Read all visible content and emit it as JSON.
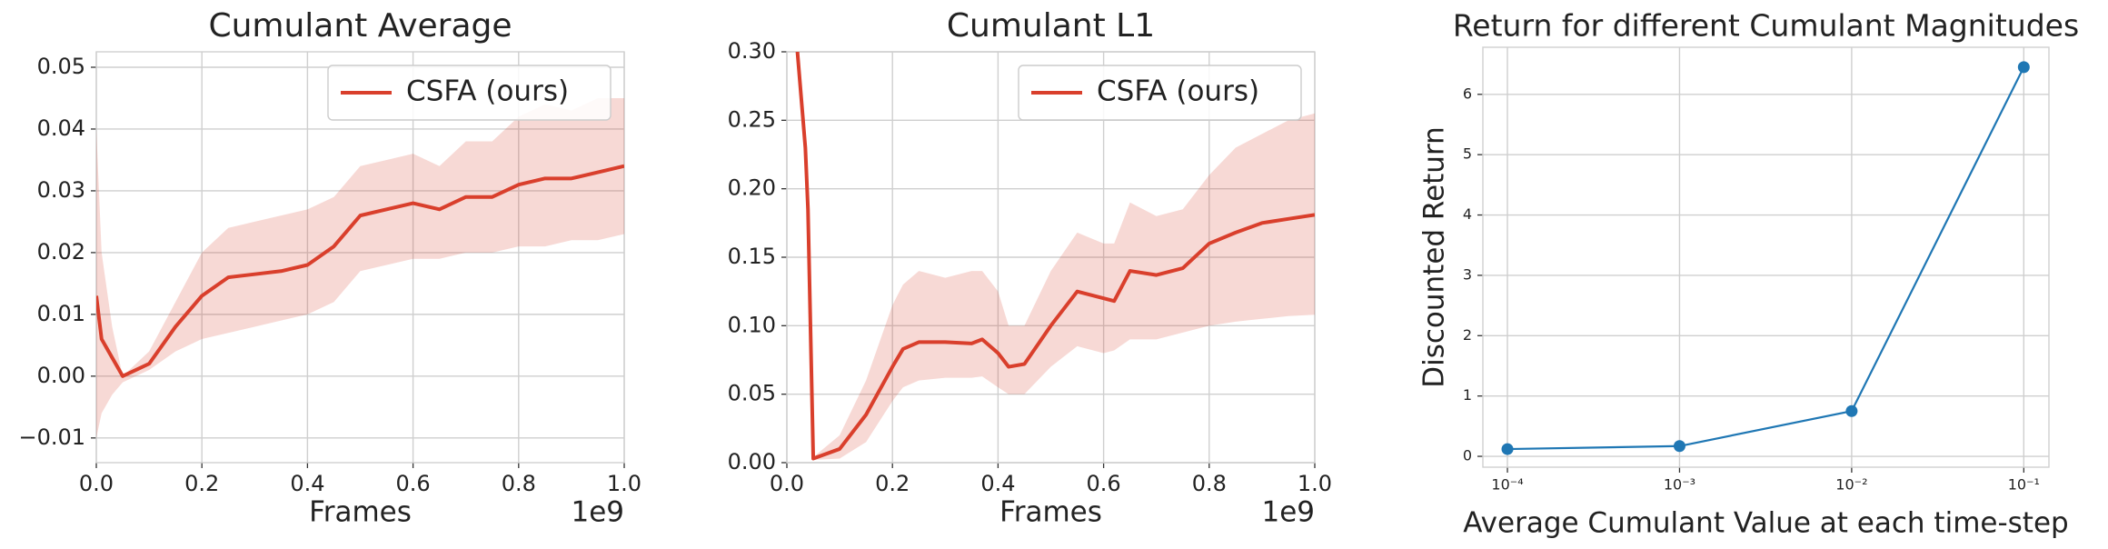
{
  "chart_data": [
    {
      "type": "line",
      "title": "Cumulant Average",
      "x_label": "Frames",
      "x_offset_text": "1e9",
      "x": [
        0,
        0.01,
        0.03,
        0.05,
        0.1,
        0.15,
        0.2,
        0.25,
        0.3,
        0.35,
        0.4,
        0.45,
        0.5,
        0.55,
        0.6,
        0.65,
        0.7,
        0.75,
        0.8,
        0.85,
        0.9,
        0.95,
        1.0
      ],
      "series": [
        {
          "name": "CSFA (ours)",
          "color": "#d93f2c",
          "values": [
            0.013,
            0.006,
            0.003,
            0.0,
            0.002,
            0.008,
            0.013,
            0.016,
            0.0165,
            0.017,
            0.018,
            0.021,
            0.026,
            0.027,
            0.028,
            0.027,
            0.029,
            0.029,
            0.031,
            0.032,
            0.032,
            0.033,
            0.034
          ],
          "lower": [
            -0.01,
            -0.006,
            -0.003,
            -0.001,
            0.001,
            0.004,
            0.006,
            0.007,
            0.008,
            0.009,
            0.01,
            0.012,
            0.017,
            0.018,
            0.019,
            0.019,
            0.02,
            0.02,
            0.021,
            0.021,
            0.022,
            0.022,
            0.023
          ],
          "upper": [
            0.04,
            0.02,
            0.008,
            0.0,
            0.004,
            0.012,
            0.02,
            0.024,
            0.025,
            0.026,
            0.027,
            0.029,
            0.034,
            0.035,
            0.036,
            0.034,
            0.038,
            0.038,
            0.042,
            0.044,
            0.043,
            0.045,
            0.045
          ]
        }
      ],
      "xlim": [
        0,
        1
      ],
      "xticks": [
        {
          "value": 0,
          "label": "0.0"
        },
        {
          "value": 0.2,
          "label": "0.2"
        },
        {
          "value": 0.4,
          "label": "0.4"
        },
        {
          "value": 0.6,
          "label": "0.6"
        },
        {
          "value": 0.8,
          "label": "0.8"
        },
        {
          "value": 1,
          "label": "1.0"
        }
      ],
      "ylim": [
        -0.014,
        0.0525
      ],
      "yticks": [
        {
          "value": -0.01,
          "label": "−0.01"
        },
        {
          "value": 0,
          "label": "0.00"
        },
        0.01,
        0.02,
        0.03,
        0.04,
        0.05
      ],
      "grid": true,
      "legend": "upper right"
    },
    {
      "type": "line",
      "title": "Cumulant L1",
      "x_label": "Frames",
      "x_offset_text": "1e9",
      "x": [
        0.02,
        0.035,
        0.04,
        0.05,
        0.1,
        0.15,
        0.2,
        0.22,
        0.25,
        0.3,
        0.35,
        0.37,
        0.4,
        0.42,
        0.45,
        0.5,
        0.55,
        0.6,
        0.62,
        0.65,
        0.7,
        0.75,
        0.8,
        0.85,
        0.9,
        0.95,
        1.0
      ],
      "series": [
        {
          "name": "CSFA (ours)",
          "color": "#d93f2c",
          "values": [
            0.3,
            0.23,
            0.185,
            0.003,
            0.01,
            0.035,
            0.07,
            0.083,
            0.088,
            0.088,
            0.087,
            0.09,
            0.08,
            0.07,
            0.072,
            0.1,
            0.125,
            0.12,
            0.118,
            0.14,
            0.137,
            0.142,
            0.16,
            0.168,
            0.175,
            0.178,
            0.181
          ],
          "lower": [
            null,
            null,
            null,
            0.002,
            0.003,
            0.015,
            0.045,
            0.055,
            0.06,
            0.062,
            0.062,
            0.063,
            0.055,
            0.05,
            0.05,
            0.07,
            0.085,
            0.08,
            0.082,
            0.09,
            0.09,
            0.095,
            0.1,
            0.103,
            0.105,
            0.107,
            0.108
          ],
          "upper": [
            null,
            null,
            null,
            0.004,
            0.02,
            0.06,
            0.115,
            0.13,
            0.14,
            0.135,
            0.14,
            0.14,
            0.125,
            0.1,
            0.1,
            0.14,
            0.168,
            0.16,
            0.16,
            0.19,
            0.18,
            0.185,
            0.21,
            0.23,
            0.24,
            0.25,
            0.255
          ]
        }
      ],
      "xlim": [
        0,
        1
      ],
      "xticks": [
        {
          "value": 0,
          "label": "0.0"
        },
        {
          "value": 0.2,
          "label": "0.2"
        },
        {
          "value": 0.4,
          "label": "0.4"
        },
        {
          "value": 0.6,
          "label": "0.6"
        },
        {
          "value": 0.8,
          "label": "0.8"
        },
        {
          "value": 1,
          "label": "1.0"
        }
      ],
      "ylim": [
        0,
        0.3
      ],
      "yticks": [
        {
          "value": 0,
          "label": "0.00"
        },
        0.05,
        {
          "value": 0.1,
          "label": "0.10"
        },
        0.15,
        {
          "value": 0.2,
          "label": "0.20"
        },
        0.25,
        {
          "value": 0.3,
          "label": "0.30"
        }
      ],
      "grid": true,
      "legend": "upper right"
    },
    {
      "type": "line",
      "title": "Return for different Cumulant Magnitudes",
      "x_label": "Average Cumulant Value at each time-step",
      "y_label": "Discounted Return",
      "x": [
        0.0001,
        0.001,
        0.01,
        0.1
      ],
      "series": [
        {
          "color": "#1f77b4",
          "values": [
            0.12,
            0.17,
            0.75,
            6.45
          ]
        }
      ],
      "xscale": "log",
      "markers": true,
      "xlim": [
        7.2e-05,
        0.14
      ],
      "xticks": [
        {
          "value": 0.0001,
          "label": "10⁻⁴"
        },
        {
          "value": 0.001,
          "label": "10⁻³"
        },
        {
          "value": 0.01,
          "label": "10⁻²"
        },
        {
          "value": 0.1,
          "label": "10⁻¹"
        }
      ],
      "ylim": [
        -0.18,
        6.78
      ],
      "yticks": [
        0,
        1,
        2,
        3,
        4,
        5,
        6
      ],
      "grid": true
    }
  ]
}
